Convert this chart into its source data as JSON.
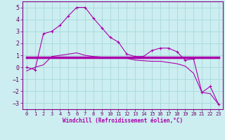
{
  "xlabel": "Windchill (Refroidissement éolien,°C)",
  "xlim": [
    -0.5,
    23.5
  ],
  "ylim": [
    -3.5,
    5.5
  ],
  "yticks": [
    -3,
    -2,
    -1,
    0,
    1,
    2,
    3,
    4,
    5
  ],
  "xticks": [
    0,
    1,
    2,
    3,
    4,
    5,
    6,
    7,
    8,
    9,
    10,
    11,
    12,
    13,
    14,
    15,
    16,
    17,
    18,
    19,
    20,
    21,
    22,
    23
  ],
  "background_color": "#cceef0",
  "grid_color": "#a8d8dc",
  "line_color": "#aa00aa",
  "series1_x": [
    0,
    1,
    2,
    3,
    4,
    5,
    6,
    7,
    8,
    9,
    10,
    11,
    12,
    13,
    14,
    15,
    16,
    17,
    18,
    19,
    20,
    21,
    22,
    23
  ],
  "series1_y": [
    0.0,
    -0.2,
    2.8,
    3.0,
    3.5,
    4.3,
    5.0,
    5.0,
    4.1,
    3.3,
    2.5,
    2.1,
    1.1,
    0.9,
    0.9,
    1.4,
    1.6,
    1.6,
    1.3,
    0.6,
    0.7,
    -2.1,
    -1.6,
    -3.1
  ],
  "series2_x": [
    0,
    1,
    2,
    3,
    4,
    5,
    6,
    7,
    8,
    9,
    10,
    11,
    12,
    13,
    14,
    15,
    16,
    17,
    18,
    19,
    20,
    21,
    22,
    23
  ],
  "series2_y": [
    0.85,
    0.85,
    0.85,
    0.85,
    0.85,
    0.85,
    0.85,
    0.85,
    0.85,
    0.85,
    0.85,
    0.85,
    0.85,
    0.85,
    0.85,
    0.85,
    0.85,
    0.85,
    0.85,
    0.85,
    0.85,
    0.85,
    0.85,
    0.85
  ],
  "series3_x": [
    0,
    1,
    2,
    3,
    4,
    5,
    6,
    7,
    8,
    9,
    10,
    11,
    12,
    13,
    14,
    15,
    16,
    17,
    18,
    19,
    20,
    21,
    22,
    23
  ],
  "series3_y": [
    -0.3,
    0.0,
    0.2,
    0.9,
    1.0,
    1.1,
    1.2,
    1.0,
    0.9,
    0.85,
    0.85,
    0.75,
    0.75,
    0.6,
    0.55,
    0.5,
    0.5,
    0.4,
    0.3,
    0.1,
    -0.5,
    -2.1,
    -2.2,
    -3.1
  ]
}
